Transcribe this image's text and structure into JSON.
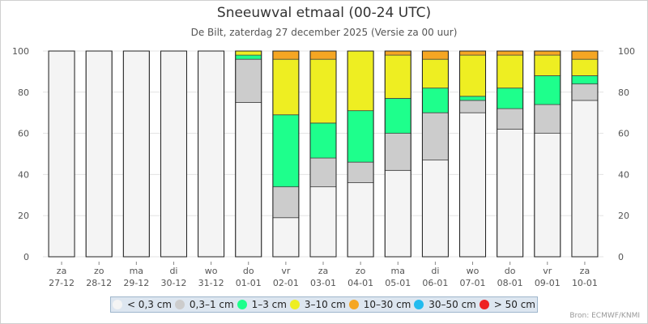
{
  "chart_data": {
    "type": "bar",
    "stacked": true,
    "title": "Sneeuwval etmaal (00-24 UTC)",
    "subtitle": "De Bilt, zaterdag 27 december 2025 (Versie za 00 uur)",
    "xlabel": "",
    "ylabel": "",
    "ylim": [
      0,
      100
    ],
    "yticks": [
      0,
      20,
      40,
      60,
      80,
      100
    ],
    "grid": true,
    "legend_position": "bottom",
    "categories": [
      {
        "day": "za",
        "date": "27-12"
      },
      {
        "day": "zo",
        "date": "28-12"
      },
      {
        "day": "ma",
        "date": "29-12"
      },
      {
        "day": "di",
        "date": "30-12"
      },
      {
        "day": "wo",
        "date": "31-12"
      },
      {
        "day": "do",
        "date": "01-01"
      },
      {
        "day": "vr",
        "date": "02-01"
      },
      {
        "day": "za",
        "date": "03-01"
      },
      {
        "day": "zo",
        "date": "04-01"
      },
      {
        "day": "ma",
        "date": "05-01"
      },
      {
        "day": "di",
        "date": "06-01"
      },
      {
        "day": "wo",
        "date": "07-01"
      },
      {
        "day": "do",
        "date": "08-01"
      },
      {
        "day": "vr",
        "date": "09-01"
      },
      {
        "day": "za",
        "date": "10-01"
      }
    ],
    "series": [
      {
        "name": "> 50 cm",
        "color": "#ee2222",
        "values": [
          0,
          0,
          0,
          0,
          0,
          0,
          0,
          0,
          0,
          0,
          0,
          0,
          0,
          0,
          0
        ]
      },
      {
        "name": "30–50 cm",
        "color": "#22bbee",
        "values": [
          0,
          0,
          0,
          0,
          0,
          0,
          0,
          0,
          0,
          0,
          0,
          0,
          0,
          0,
          0
        ]
      },
      {
        "name": "10–30 cm",
        "color": "#f5a623",
        "values": [
          0,
          0,
          0,
          0,
          0,
          0,
          4,
          4,
          0,
          2,
          4,
          2,
          2,
          2,
          4
        ]
      },
      {
        "name": "3–10 cm",
        "color": "#eeee22",
        "values": [
          0,
          0,
          0,
          0,
          0,
          2,
          27,
          31,
          29,
          21,
          14,
          20,
          16,
          10,
          8
        ]
      },
      {
        "name": "1–3 cm",
        "color": "#1eff8c",
        "values": [
          0,
          0,
          0,
          0,
          0,
          2,
          35,
          17,
          25,
          17,
          12,
          2,
          10,
          14,
          4
        ]
      },
      {
        "name": "0,3–1 cm",
        "color": "#cccccc",
        "values": [
          0,
          0,
          0,
          0,
          0,
          21,
          15,
          14,
          10,
          18,
          23,
          6,
          10,
          14,
          8
        ]
      },
      {
        "name": "< 0,3 cm",
        "color": "#f4f4f4",
        "values": [
          100,
          100,
          100,
          100,
          100,
          75,
          19,
          34,
          36,
          42,
          47,
          70,
          62,
          60,
          76
        ]
      }
    ],
    "legend_order": [
      "< 0,3 cm",
      "0,3–1 cm",
      "1–3 cm",
      "3–10 cm",
      "10–30 cm",
      "30–50 cm",
      "> 50 cm"
    ]
  },
  "source": "Bron: ECMWF/KNMI"
}
